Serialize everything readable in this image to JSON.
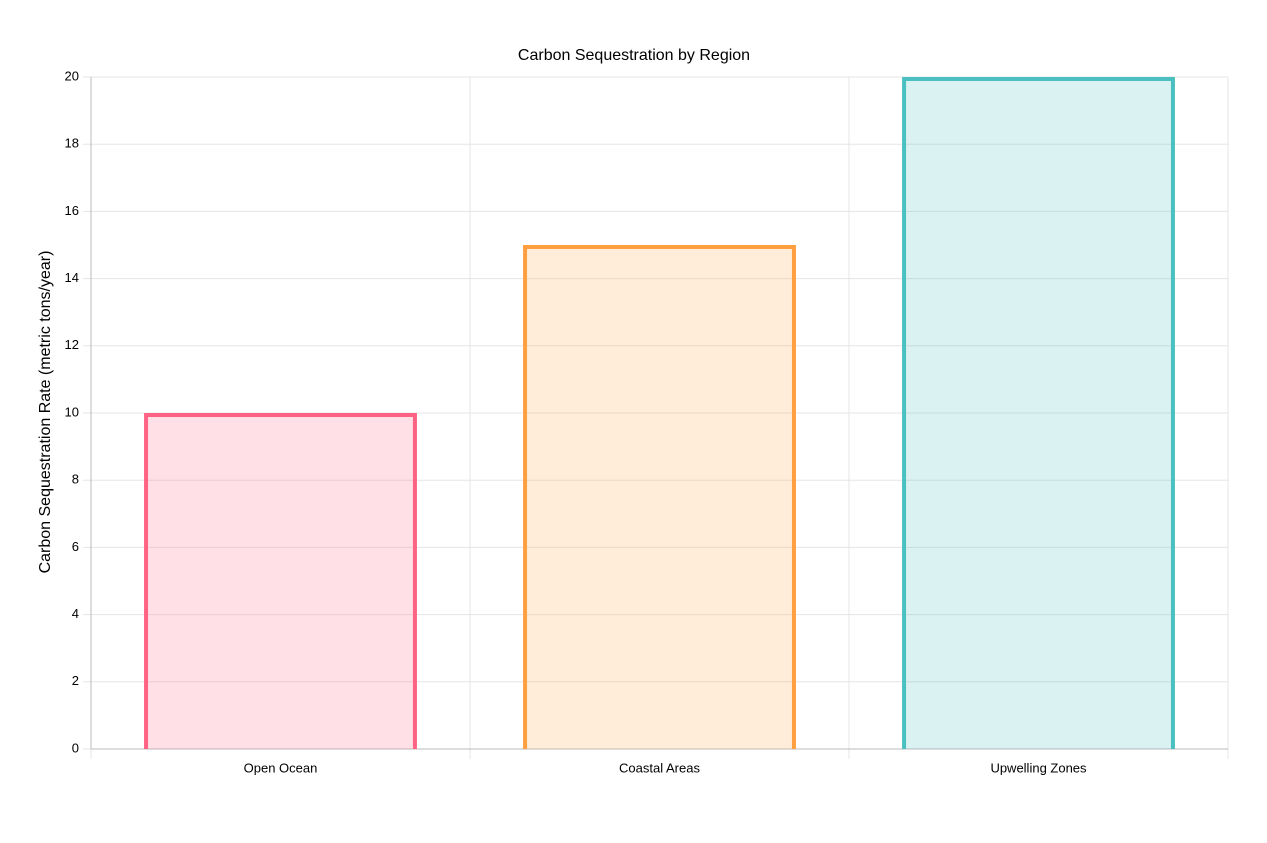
{
  "chart_data": {
    "type": "bar",
    "title": "Carbon Sequestration by Region",
    "y_label": "Carbon Sequestration Rate (metric tons/year)",
    "categories": [
      "Open Ocean",
      "Coastal Areas",
      "Upwelling Zones"
    ],
    "values": [
      10,
      15,
      20
    ],
    "colors": [
      "#ff6384",
      "#ff9f40",
      "#4bc0c0"
    ],
    "ylim": [
      0,
      20
    ],
    "yticks": [
      0,
      2,
      4,
      6,
      8,
      10,
      12,
      14,
      16,
      18,
      20
    ],
    "grid": true
  }
}
